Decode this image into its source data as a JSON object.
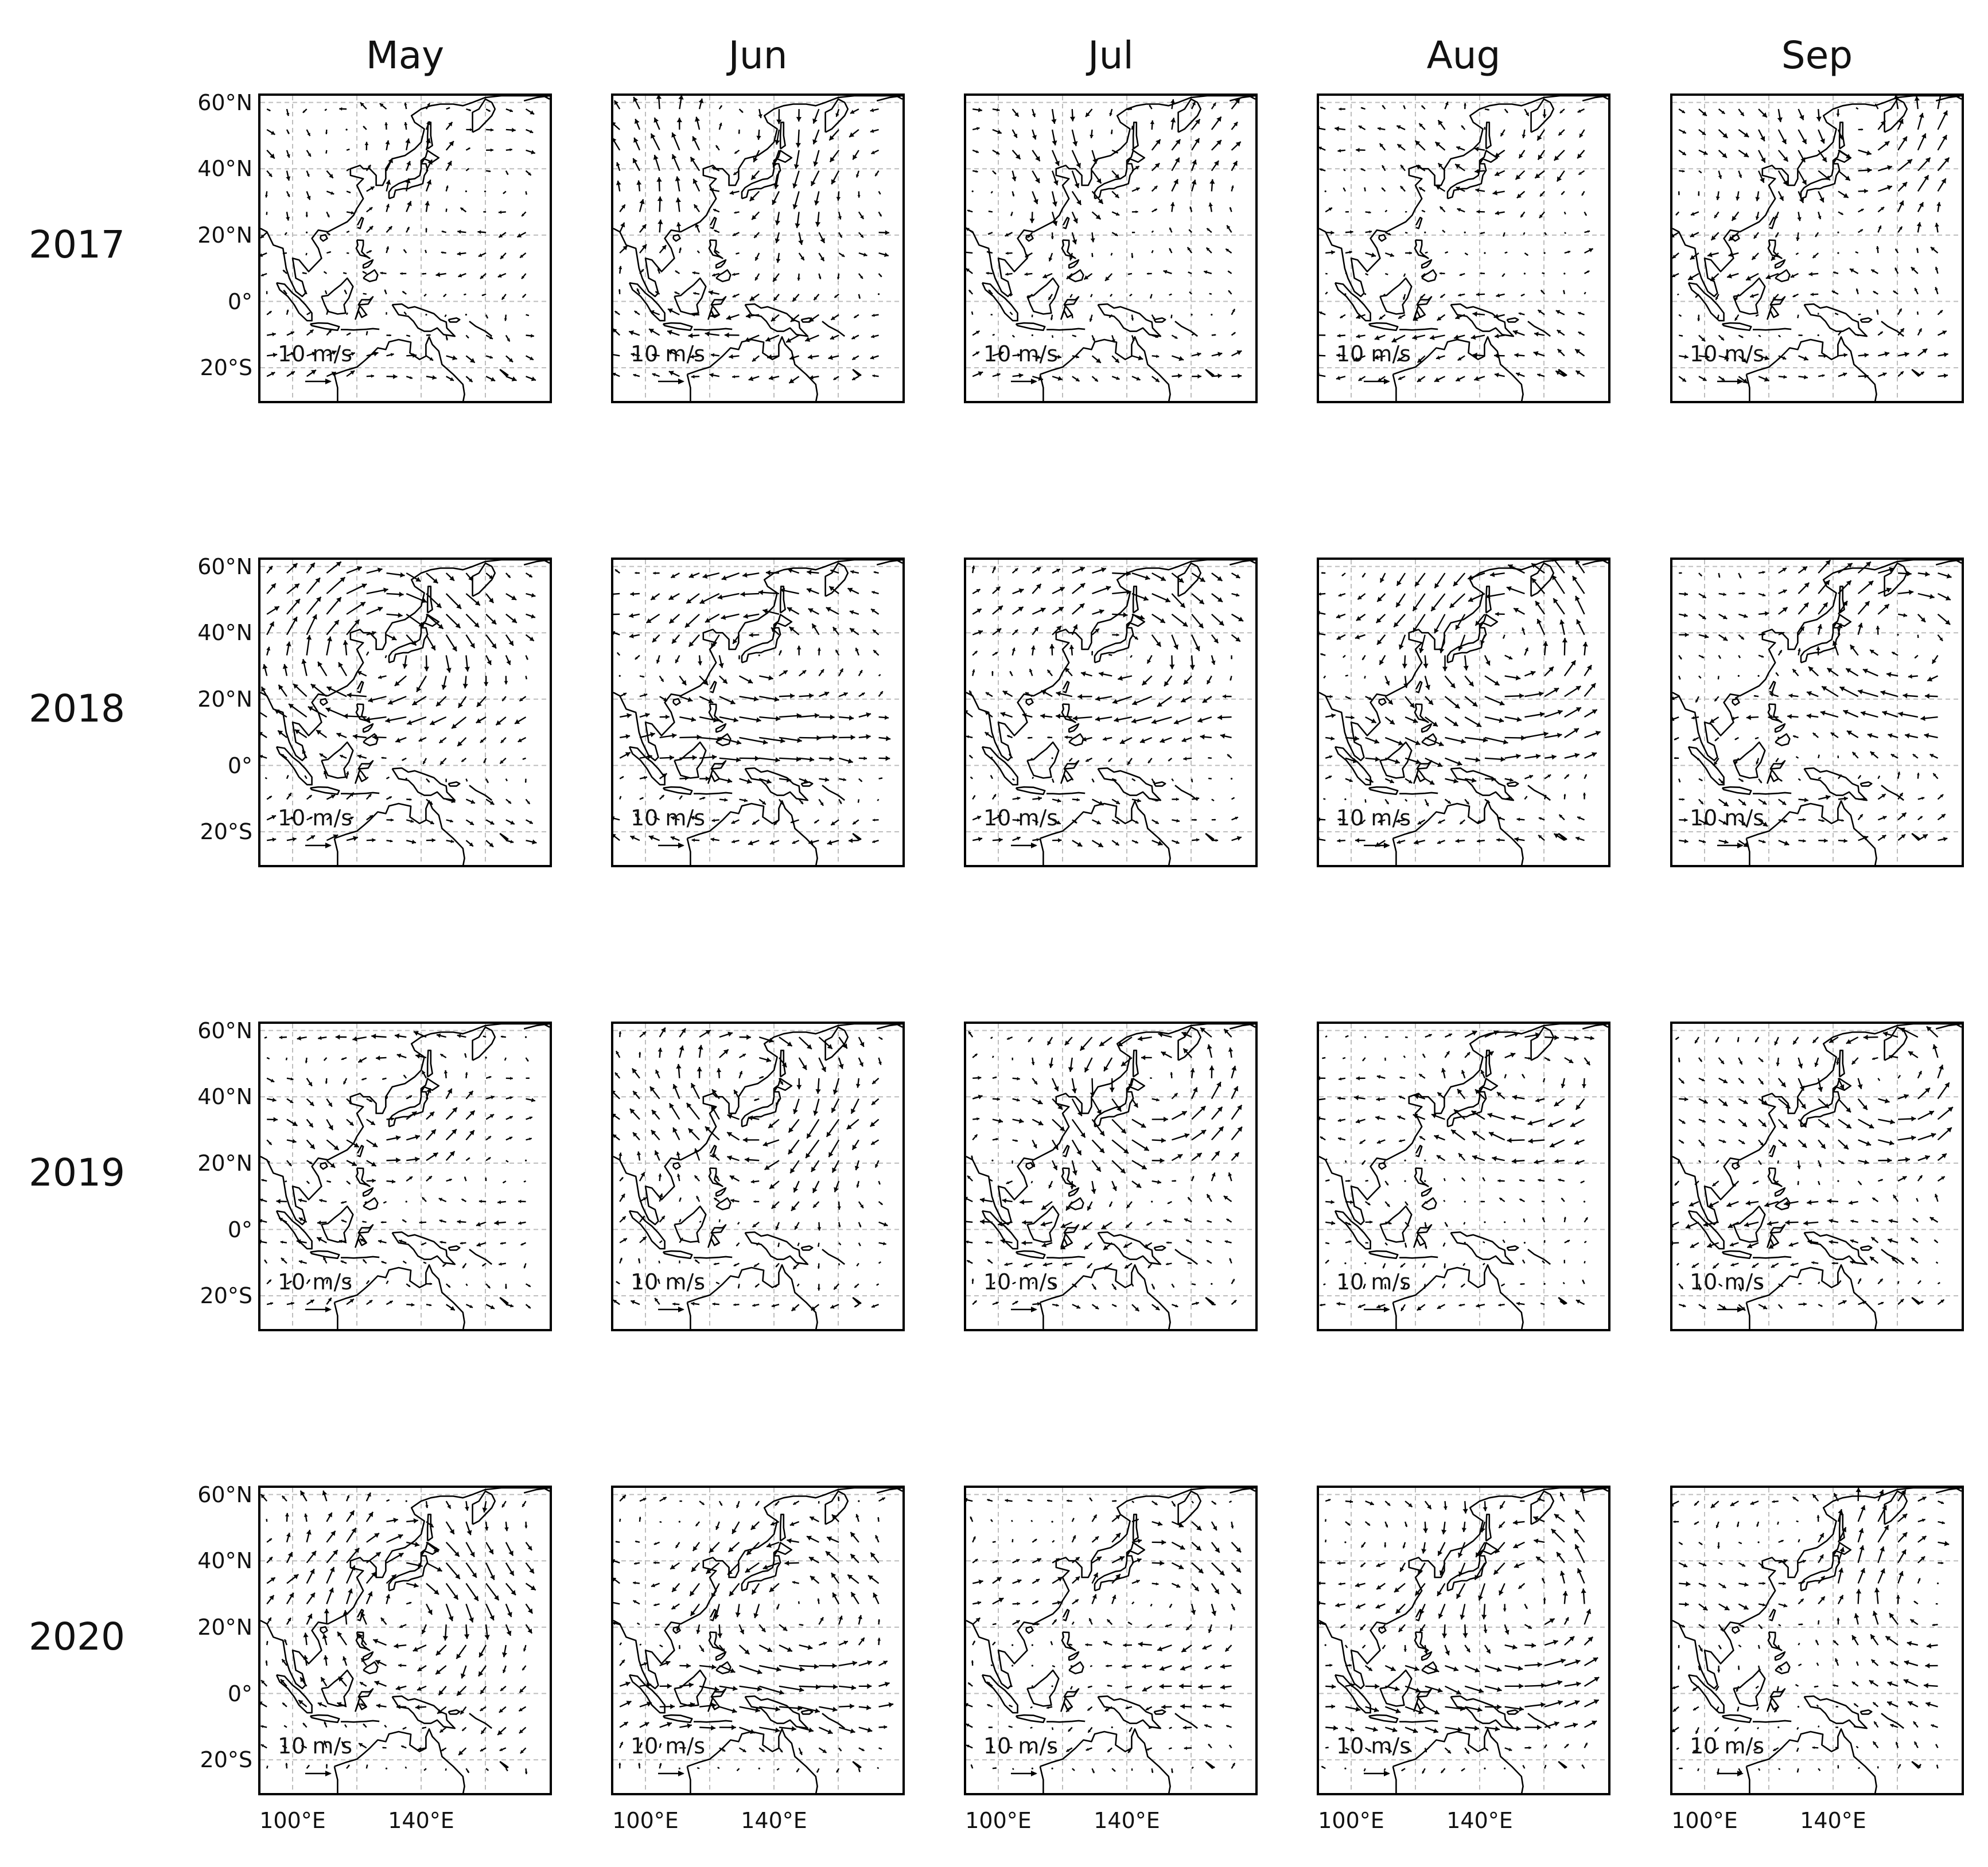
{
  "columns": [
    "May",
    "Jun",
    "Jul",
    "Aug",
    "Sep"
  ],
  "rows": [
    "2017",
    "2018",
    "2019",
    "2020"
  ],
  "lat_ticks": [
    "60°N",
    "40°N",
    "20°N",
    "0°",
    "20°S"
  ],
  "lon_ticks": [
    "100°E",
    "140°E"
  ],
  "scale_label": "10 m/s",
  "map_extent": {
    "lon": [
      90,
      180
    ],
    "lat": [
      -30,
      62
    ]
  },
  "icon": "wind-vector-field"
}
